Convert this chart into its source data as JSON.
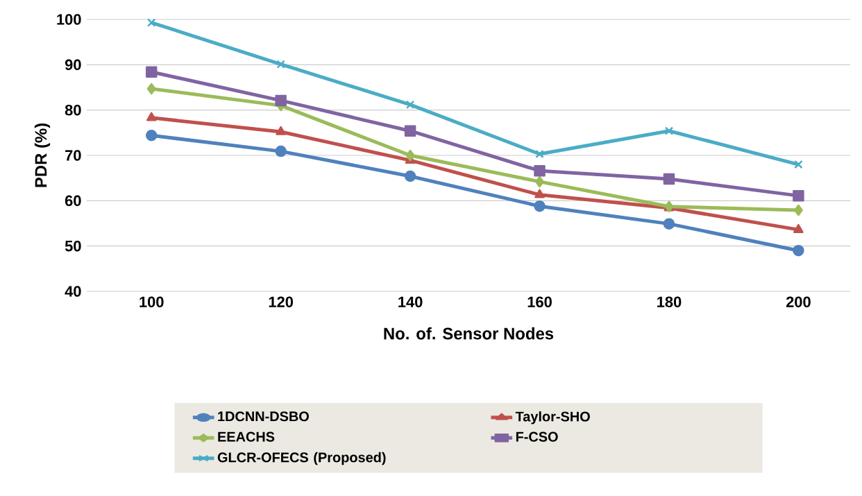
{
  "chart_data": {
    "type": "line",
    "xlabel": "No. of. Sensor Nodes",
    "ylabel": "PDR (%)",
    "categories": [
      "100",
      "120",
      "140",
      "160",
      "180",
      "200"
    ],
    "ylim": [
      40,
      100
    ],
    "yticks": [
      40,
      50,
      60,
      70,
      80,
      90,
      100
    ],
    "grid": "y",
    "legend": "bottom",
    "line_style": "solid",
    "series": [
      {
        "name": "1DCNN-DSBO",
        "color": "#4f81bd",
        "marker": "circle",
        "values": [
          74.4,
          70.9,
          65.4,
          58.8,
          54.9,
          49.0
        ]
      },
      {
        "name": "Taylor-SHO",
        "color": "#c0504d",
        "marker": "triangle",
        "values": [
          78.3,
          75.2,
          68.9,
          61.3,
          58.4,
          53.6
        ]
      },
      {
        "name": "EEACHS",
        "color": "#9bbb59",
        "marker": "diamond",
        "values": [
          84.7,
          81.0,
          70.0,
          64.2,
          58.7,
          57.9
        ]
      },
      {
        "name": "F-CSO",
        "color": "#8064a2",
        "marker": "square",
        "values": [
          88.4,
          82.1,
          75.4,
          66.6,
          64.8,
          61.1
        ]
      },
      {
        "name": "GLCR-OFECS (Proposed)",
        "color": "#4bacc6",
        "marker": "cross",
        "values": [
          99.3,
          90.1,
          81.2,
          70.3,
          75.4,
          68.0
        ]
      }
    ]
  }
}
